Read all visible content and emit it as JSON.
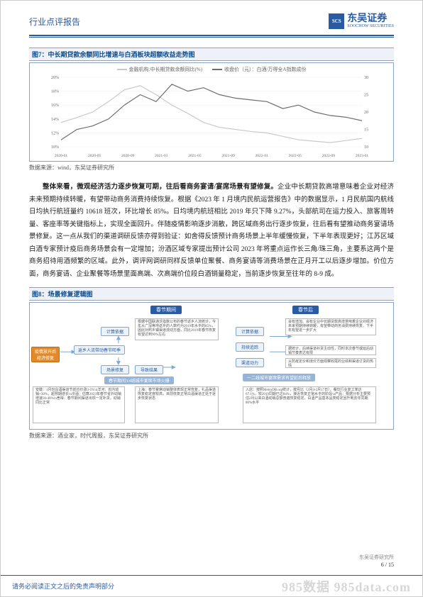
{
  "header": {
    "left": "行业点评报告",
    "logo_abbr": "SCS",
    "logo_cn": "东吴证券",
    "logo_en": "SOOCHOW SECURITIES"
  },
  "fig7": {
    "title": "图7：中长期贷款余额同比增速与白酒板块超额收益走势图",
    "legend_a": "金融机构:中长期贷款余额同比(%)",
    "legend_b": "收盘价（元）：白酒/万得全A指数成份",
    "series_a_color": "#c9c9c9",
    "series_b_color": "#6d6d6d",
    "x_labels": [
      "2020-01",
      "2020-05",
      "2020-09",
      "2021-01",
      "2021-05",
      "2021-09",
      "2022-01",
      "2022-05",
      "2022-09",
      "2023-01"
    ],
    "y_left_labels": [
      "10%",
      "12%",
      "14%",
      "16%",
      "18%",
      "20%"
    ],
    "y_right_labels": [
      "10",
      "15",
      "20",
      "25",
      "30"
    ],
    "series_a": [
      13.5,
      14.2,
      15.0,
      16.5,
      18.2,
      18.8,
      17.5,
      16.0,
      14.8,
      13.5,
      12.8,
      12.5,
      12.2,
      12.0,
      11.5,
      11.0,
      10.8,
      10.6,
      10.9,
      11.2
    ],
    "series_b": [
      12,
      15,
      16,
      18,
      22,
      25,
      23,
      28,
      26,
      27,
      25,
      24,
      23.5,
      23,
      21,
      22,
      20,
      19,
      18.5,
      17.5
    ],
    "y_left_min": 10,
    "y_left_max": 20,
    "y_right_min": 10,
    "y_right_max": 30,
    "source": "数据来源：wind，东吴证券研究所"
  },
  "body": {
    "bold_lead": "整体来看，微观经济活力逐步恢复可期，往后看商务宴请/宴席场景有望修复。",
    "rest": "企业中长期贷款高增意味着企业对经济未来预期持续转暖，有望带动商务消费持续恢复。根据《2023 年 1 月境内民航运营报告》中的数据显示，1 月民航国内航线日均执行航班量约 10618 班次，环比增长 85%。日均境内航班相比 2019 年只下降 9.27%，头部航司在运力投入、旅客周转量、客座率等关键指标上，实现全面回升。伴随疫情影响逐步消散，跨区域商务出行逐步恢复，往后看有望推动商务宴请场景修复。这一点从我们的渠道调研反馈亦得到验证：如舍得反馈预计商务场景上半年缓慢恢复，下半年表现更好；江苏区域白酒专家预计疫后商务场景会有一定增加；汾酒区域专家提出预计公司 2023 年将重点运作长三角/珠三角，主要系这两个是商务招待用酒频繁的区域。此外，调评网调研同样反馈单位聚餐、商务宴请等消费场景在正月开工以后逐步增加。价位方面，商务宴请、企业聚餐等场景里面高端、次高端价位段白酒销量稳定，当前逐步恢复至往年的 8-9 成。"
  },
  "fig8": {
    "title": "图8：场景修复逻辑图",
    "col_header_left": "春节期间",
    "col_header_right": "春节后",
    "node_restore": "疫情放开后经济修复",
    "node_flow_a": "返乡人流带动春节旺季",
    "node_flow_b": "场景修复",
    "node_compute": "计算依据",
    "node_result": "导致结果",
    "node_compute2": "计算依据",
    "node_track": "持续追踪",
    "node_channel": "渠道动力",
    "text_box_a": "根据中国联通沃指数公布的春节返乡人流统计，今年从广深等地返乡的人数约为2019年水平的85%，因此对照乡镇渠道流动方面，同比2019年春节恢复有望达到90%左右",
    "text_box_b": "会有增加。会有企业中长期贷款高增意味着企业对经济未来预期持续转暖，有望带动商务消费持续恢复。下半年有望进一步扩大",
    "text_box_c": "据统计，后续渠道补货主动性，同时本次春节或延后动销节奏表达有限",
    "text_box_d": "从防疫定价和涨价方面观察收尾的业绩和渠道订货的热情",
    "banner_mid": "春节期间3/4线城市宴席市场火爆",
    "banner_right": "一二线城市宴席需求有望延后释放",
    "text_bottom_a": "安徽：1月份白酒渠道节前均价涨3-5%\\n洋河：省内动销+30%，超预期增长\\n汾酒：估算2023年春节省外动销增速30-40%\\n舍得：春节期间渠道出现一定补货，动销同比正常",
    "text_bottom_b": "上海：春节宴席动销整体表现正常恢复，礼品渠道恢复稳定度较高，目前恢复正常白酒渠道正处于逐步恢复状态",
    "text_bottom_c": "入店：按照MetroDB.org统计，按月比（2月4-2月17日），餐饮行业复工率达67.1%，较2019同期已达84%，接近恢复正常水平的阶段\\n产品：根据分析主要预估2月以来白酒动销总额普遍恢复稳定，白酒产品基本品类稳定回升到去年同期80%水平",
    "source": "数据来源：酒业家，时代周报，东吴证券研究所"
  },
  "footer": {
    "inst": "东吴证券研究所",
    "page": "6 / 15",
    "disclaimer": "请务必阅读正文之后的免责声明部分",
    "watermark": "985数据 985data.com"
  }
}
